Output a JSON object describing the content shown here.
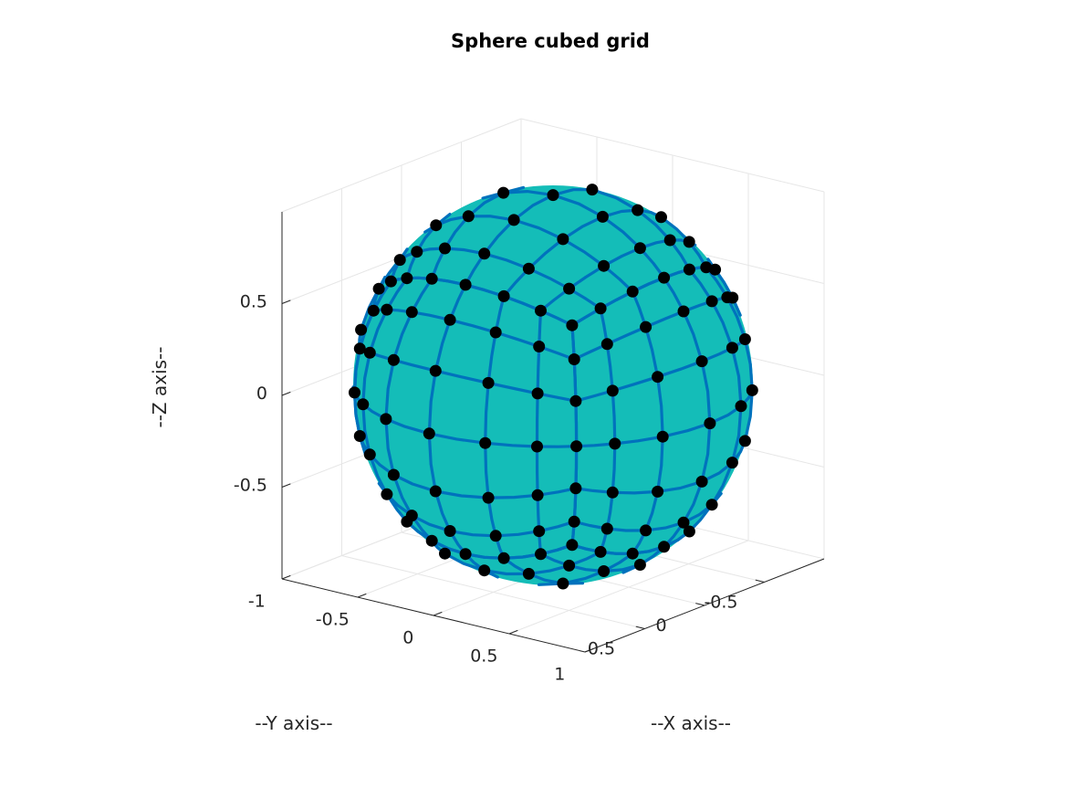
{
  "chart_data": {
    "type": "scatter",
    "projection": "3d",
    "title": "Sphere cubed grid",
    "xlabel": "--X axis--",
    "ylabel": "--Y axis--",
    "zlabel": "--Z axis--",
    "xticks": [
      {
        "value": -1,
        "label": "-1"
      },
      {
        "value": -0.5,
        "label": "-0.5"
      },
      {
        "value": 0,
        "label": "0"
      },
      {
        "value": 0.5,
        "label": "0.5"
      },
      {
        "value": 1,
        "label": "1"
      }
    ],
    "yticks": [
      {
        "value": -0.5,
        "label": "-0.5"
      },
      {
        "value": 0,
        "label": "0"
      },
      {
        "value": 0.5,
        "label": "0.5"
      }
    ],
    "zticks": [
      {
        "value": -0.5,
        "label": "-0.5"
      },
      {
        "value": 0,
        "label": "0"
      },
      {
        "value": 0.5,
        "label": "0.5"
      }
    ],
    "xlim": [
      -1,
      1
    ],
    "ylim": [
      -1,
      1
    ],
    "zlim": [
      -1,
      1
    ],
    "grid": true,
    "view": {
      "azimuth": -52,
      "elevation": 28
    },
    "sphere": {
      "radius": 1,
      "center": [
        0,
        0,
        0
      ],
      "subdivisions_per_face_edge": 6
    },
    "colors": {
      "surface": "#14bdb8",
      "grid_lines": "#0072bd",
      "nodes": "#000000",
      "axes": "#262626",
      "gridlines": "#e6e6e6"
    }
  }
}
